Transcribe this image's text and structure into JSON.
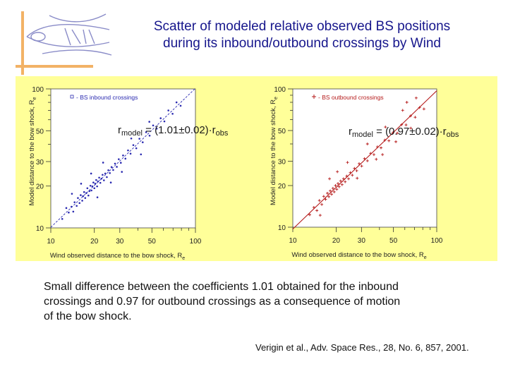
{
  "title": {
    "line1": "Scatter of modeled relative observed BS positions",
    "line2": "during its inbound/outbound crossings by Wind"
  },
  "colors": {
    "title": "#16168c",
    "panel": "#ffff99",
    "accent": "#f2b266",
    "inbound": "#2a2ab0",
    "outbound": "#b51a1a"
  },
  "logo": {
    "name": "institute-logo-icon"
  },
  "chart_data": [
    {
      "type": "scatter",
      "title": "",
      "legend": "- BS inbound crossings",
      "legend_position": "top-left",
      "xlabel": "Wind observed distance to the bow shock, R",
      "xlabel_sub": "e",
      "ylabel": "Model distance to the bow shock, R",
      "ylabel_sub": "e",
      "xscale": "log",
      "yscale": "log",
      "xlim": [
        10,
        100
      ],
      "ylim": [
        10,
        100
      ],
      "xticks": [
        10,
        20,
        30,
        50,
        100
      ],
      "yticks": [
        10,
        20,
        30,
        50,
        100
      ],
      "fit_slope": 1.01,
      "formula": {
        "prefix": "r",
        "sub1": "model",
        "mid": " = (1.01±0.02)·r",
        "sub2": "obs"
      },
      "series": [
        {
          "name": "BS inbound crossings",
          "marker": "dot",
          "points": [
            [
              12,
              11.6
            ],
            [
              12.8,
              13.9
            ],
            [
              13.3,
              12.9
            ],
            [
              13.9,
              14.2
            ],
            [
              14.3,
              13.1
            ],
            [
              14.6,
              15.3
            ],
            [
              15.1,
              14.4
            ],
            [
              15.4,
              16.4
            ],
            [
              15.8,
              15.1
            ],
            [
              16.1,
              17.2
            ],
            [
              16.5,
              15.7
            ],
            [
              16.7,
              16.9
            ],
            [
              17,
              18.1
            ],
            [
              17.3,
              16.4
            ],
            [
              17.6,
              17.8
            ],
            [
              17.9,
              19.3
            ],
            [
              18.2,
              17.1
            ],
            [
              18.5,
              18.4
            ],
            [
              18.8,
              20.1
            ],
            [
              19.1,
              18.6
            ],
            [
              19.4,
              19.9
            ],
            [
              19.7,
              21.2
            ],
            [
              20,
              19.3
            ],
            [
              20.3,
              20.8
            ],
            [
              20.6,
              22.1
            ],
            [
              20.9,
              19.9
            ],
            [
              21.2,
              21.6
            ],
            [
              21.6,
              23
            ],
            [
              22,
              21.1
            ],
            [
              22.4,
              22.6
            ],
            [
              22.8,
              24.1
            ],
            [
              23.3,
              22
            ],
            [
              23.8,
              24.6
            ],
            [
              24.4,
              23.2
            ],
            [
              25,
              26
            ],
            [
              25.6,
              24.8
            ],
            [
              26.3,
              27.4
            ],
            [
              27,
              26.1
            ],
            [
              27.8,
              29
            ],
            [
              28.6,
              27.5
            ],
            [
              29.5,
              31.2
            ],
            [
              30.5,
              29.4
            ],
            [
              31.6,
              33.2
            ],
            [
              32.8,
              31.5
            ],
            [
              34.2,
              36.1
            ],
            [
              35.6,
              34.2
            ],
            [
              37.2,
              39.4
            ],
            [
              39,
              37.4
            ],
            [
              41,
              43.8
            ],
            [
              43.2,
              41.3
            ],
            [
              45.6,
              48.8
            ],
            [
              48.2,
              46.1
            ],
            [
              51,
              54.6
            ],
            [
              54,
              51.8
            ],
            [
              57.5,
              61.5
            ],
            [
              61,
              58.4
            ],
            [
              65,
              70
            ],
            [
              69.5,
              66.2
            ],
            [
              74,
              80
            ],
            [
              79,
              75.6
            ],
            [
              16.2,
              20.8
            ],
            [
              19,
              24.6
            ],
            [
              23,
              29.5
            ],
            [
              26,
              21.2
            ],
            [
              31,
              25.3
            ],
            [
              36,
              44
            ],
            [
              42,
              33.8
            ],
            [
              48,
              58
            ],
            [
              21,
              16.6
            ],
            [
              14,
              17.6
            ]
          ]
        }
      ]
    },
    {
      "type": "scatter",
      "title": "",
      "legend": "- BS outbound crossings",
      "legend_position": "top-left",
      "xlabel": "Wind observed distance to the bow shock, R",
      "xlabel_sub": "e",
      "ylabel": "Model distance to the bow shock, R",
      "ylabel_sub": "e",
      "xscale": "log",
      "yscale": "log",
      "xlim": [
        10,
        100
      ],
      "ylim": [
        10,
        100
      ],
      "xticks": [
        10,
        20,
        30,
        50,
        100
      ],
      "yticks": [
        10,
        20,
        30,
        50,
        100
      ],
      "fit_slope": 0.97,
      "formula": {
        "prefix": "r",
        "sub1": "model",
        "mid": " = (0.97±0.02)·r",
        "sub2": "obs"
      },
      "series": [
        {
          "name": "BS outbound crossings",
          "marker": "cross",
          "points": [
            [
              13.1,
              12.3
            ],
            [
              14,
              13.9
            ],
            [
              14.7,
              13.2
            ],
            [
              15.3,
              15.6
            ],
            [
              15.9,
              14.6
            ],
            [
              16.4,
              16.7
            ],
            [
              16.9,
              15.9
            ],
            [
              17.4,
              17.6
            ],
            [
              17.8,
              16.6
            ],
            [
              18.2,
              18.3
            ],
            [
              18.6,
              17.3
            ],
            [
              19,
              19.1
            ],
            [
              19.4,
              18
            ],
            [
              19.8,
              20
            ],
            [
              20.2,
              18.8
            ],
            [
              20.6,
              20.7
            ],
            [
              21,
              19.6
            ],
            [
              21.5,
              21.6
            ],
            [
              22,
              20.3
            ],
            [
              22.5,
              22.4
            ],
            [
              23.1,
              21.3
            ],
            [
              23.7,
              23.4
            ],
            [
              24.4,
              22.4
            ],
            [
              25.1,
              24.8
            ],
            [
              25.9,
              23.8
            ],
            [
              26.8,
              26.6
            ],
            [
              27.8,
              25.6
            ],
            [
              28.9,
              28.8
            ],
            [
              30.1,
              27.7
            ],
            [
              31.5,
              31.3
            ],
            [
              33,
              30.2
            ],
            [
              34.7,
              34.2
            ],
            [
              36.6,
              33.5
            ],
            [
              38.7,
              38.1
            ],
            [
              41,
              37.5
            ],
            [
              43.6,
              42.6
            ],
            [
              46.5,
              42.2
            ],
            [
              49.7,
              48.3
            ],
            [
              53.2,
              47.9
            ],
            [
              57,
              55.1
            ],
            [
              61.2,
              54.9
            ],
            [
              65.8,
              63.8
            ],
            [
              70.8,
              62.4
            ],
            [
              76,
              73.4
            ],
            [
              81.5,
              71.6
            ],
            [
              20.4,
              25.2
            ],
            [
              24,
              29.4
            ],
            [
              28,
              22.6
            ],
            [
              33,
              40
            ],
            [
              38,
              31
            ],
            [
              44,
              53
            ],
            [
              52,
              41.5
            ],
            [
              58,
              70
            ],
            [
              66,
              52
            ],
            [
              18,
              22.4
            ],
            [
              15.5,
              12.2
            ],
            [
              42,
              33.5
            ],
            [
              62,
              80
            ],
            [
              72,
              86
            ]
          ]
        }
      ]
    }
  ],
  "caption": {
    "line1": "Small difference between the coefficients 1.01 obtained for the inbound",
    "line2": "crossings and 0.97 for outbound crossings as a consequence of motion",
    "line3": "of the bow shock."
  },
  "citation": "Verigin et al., Adv. Space Res., 28, No. 6, 857, 2001."
}
